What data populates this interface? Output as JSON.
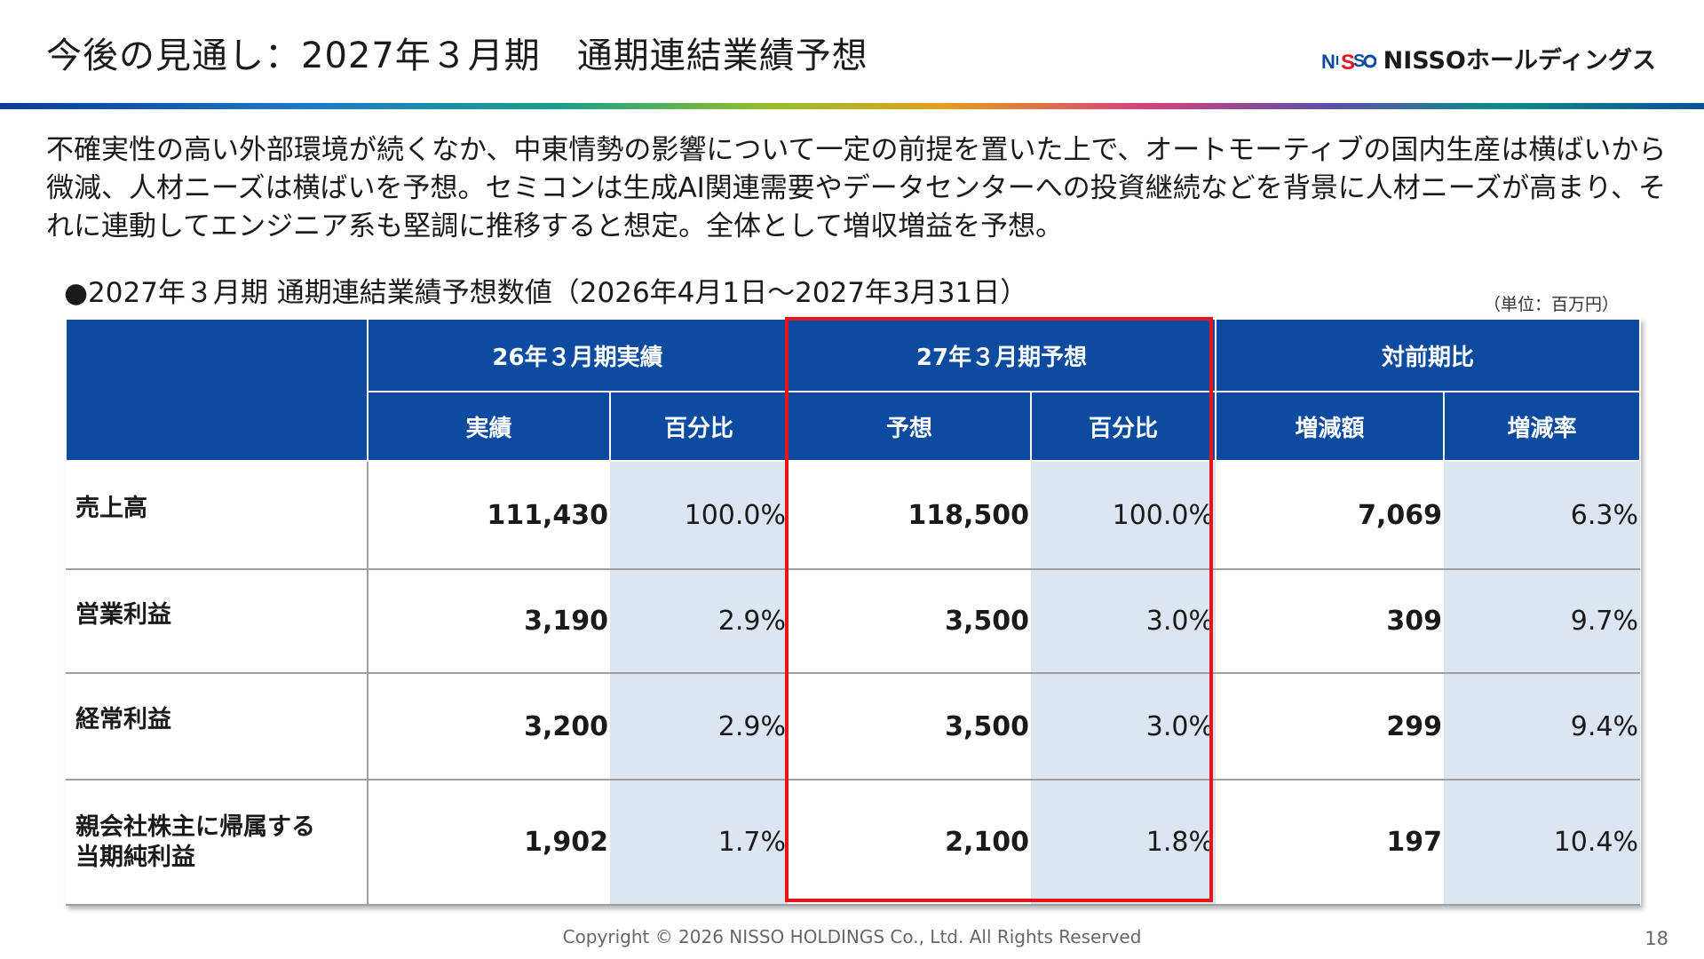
{
  "title": "今後の見通し：2027年３月期　通期連結業績予想",
  "logo": {
    "text": "NISSOホールディングス",
    "mark_icon": "nisso-logo-mark",
    "brand_color": "#0d4ba0",
    "accent_color": "#e8141b"
  },
  "intro": "不確実性の高い外部環境が続くなか、中東情勢の影響について一定の前提を置いた上で、オートモーティブの国内生産は横ばいから微減、人材ニーズは横ばいを予想。セミコンは生成AI関連需要やデータセンターへの投資継続などを背景に人材ニーズが高まり、それに連動してエンジニア系も堅調に推移すると想定。全体として増収増益を予想。",
  "subheading": "●2027年３月期 通期連結業績予想数値（2026年4月1日～2027年3月31日）",
  "unit": "（単位：百万円）",
  "table": {
    "groups": [
      "26年３月期実績",
      "27年３月期予想",
      "対前期比"
    ],
    "columns": [
      "実績",
      "百分比",
      "予想",
      "百分比",
      "増減額",
      "増減率"
    ],
    "rows": [
      {
        "label": "売上高",
        "values": [
          "111,430",
          "100.0%",
          "118,500",
          "100.0%",
          "7,069",
          "6.3%"
        ]
      },
      {
        "label": "営業利益",
        "values": [
          "3,190",
          "2.9%",
          "3,500",
          "3.0%",
          "309",
          "9.7%"
        ]
      },
      {
        "label": "経常利益",
        "values": [
          "3,200",
          "2.9%",
          "3,500",
          "3.0%",
          "299",
          "9.4%"
        ]
      },
      {
        "label": "親会社株主に帰属する\n当期純利益",
        "values": [
          "1,902",
          "1.7%",
          "2,100",
          "1.8%",
          "197",
          "10.4%"
        ]
      }
    ],
    "header_color": "#0d4ba0",
    "shade_color": "#dce5f2",
    "highlight_color": "#e8141b"
  },
  "footer": "Copyright © 2026 NISSO HOLDINGS Co., Ltd. All Rights Reserved",
  "page_number": "18"
}
